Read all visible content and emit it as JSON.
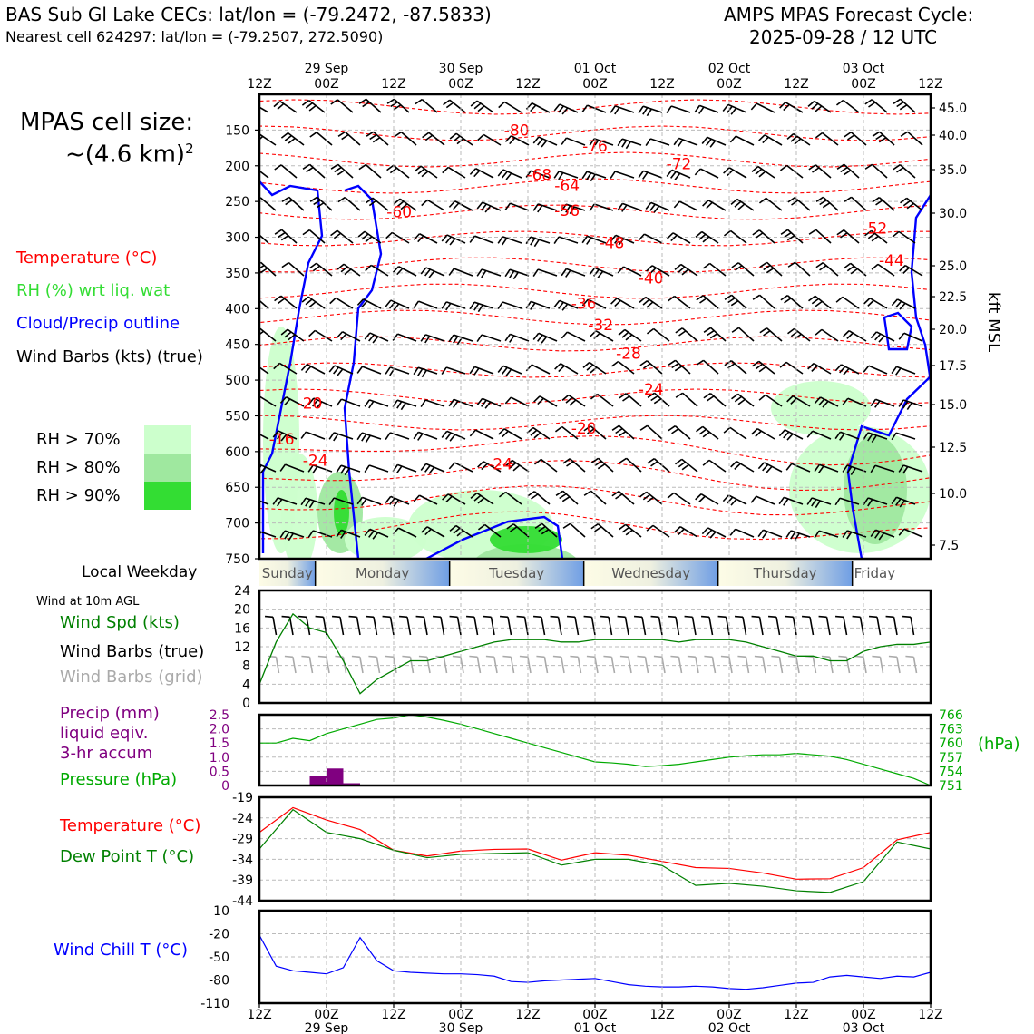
{
  "header": {
    "title_line1": "BAS Sub Gl Lake CECs: lat/lon = (-79.2472, -87.5833)",
    "title_line2": "Nearest cell 624297: lat/lon = (-79.2507, 272.5090)",
    "cycle_line1": "AMPS MPAS Forecast Cycle:",
    "cycle_line2": "2025-09-28 / 12 UTC"
  },
  "left_panel": {
    "cell_size_line1": "MPAS cell size:",
    "cell_size_line2": "~(4.6 km)",
    "cell_size_sup": "2",
    "legend_temperature": "Temperature (°C)",
    "legend_rh": "RH (%) wrt liq. wat",
    "legend_cloud": "Cloud/Precip outline",
    "legend_wind": "Wind Barbs (kts) (true)",
    "rh_levels": [
      {
        "label": "RH > 70%",
        "color": "#ccffcc"
      },
      {
        "label": "RH > 80%",
        "color": "#9fe89f"
      },
      {
        "label": "RH > 90%",
        "color": "#33dd33"
      }
    ],
    "local_weekday": "Local Weekday",
    "wind_10m": "Wind at 10m AGL",
    "wind_spd": "Wind Spd (kts)",
    "wind_barbs_true": "Wind Barbs (true)",
    "wind_barbs_grid": "Wind Barbs (grid)",
    "precip_line1": "Precip (mm)",
    "precip_line2": "liquid eqiv.",
    "precip_line3": "3-hr accum",
    "pressure": "Pressure (hPa)",
    "temperature": "Temperature (°C)",
    "dew_point": "Dew Point T (°C)",
    "wind_chill": "Wind Chill T (°C)"
  },
  "colors": {
    "temperature": "#ff0000",
    "rh_text": "#33dd33",
    "cloud": "#0000ff",
    "wind_spd": "#008000",
    "wind_grid": "#aaaaaa",
    "precip": "#800080",
    "pressure": "#00aa00",
    "dewpoint": "#008000",
    "windchill": "#0000ff"
  },
  "time_axis": {
    "top_dates": [
      "29 Sep",
      "30 Sep",
      "01 Oct",
      "02 Oct",
      "03 Oct"
    ],
    "hours": [
      "12Z",
      "00Z",
      "12Z",
      "00Z",
      "12Z",
      "00Z",
      "12Z",
      "00Z",
      "12Z",
      "00Z",
      "12Z"
    ],
    "bottom_hours": [
      "12Z",
      "00Z",
      "12Z",
      "00Z",
      "12Z",
      "00Z",
      "12Z",
      "00Z",
      "12Z",
      "00Z",
      "12Z"
    ],
    "bottom_dates": [
      "29 Sep",
      "30 Sep",
      "01 Oct",
      "02 Oct",
      "03 Oct"
    ]
  },
  "weekdays": [
    "Sunday",
    "Monday",
    "Tuesday",
    "Wednesday",
    "Thursday",
    "Friday"
  ],
  "chart_data": [
    {
      "type": "heatmap",
      "name": "time-height cross section",
      "ylabel_left": "pressure (hPa)",
      "ylabel_right": "kft MSL",
      "pressure_ticks": [
        150,
        200,
        250,
        300,
        350,
        400,
        450,
        500,
        550,
        600,
        650,
        700,
        750
      ],
      "height_ticks": [
        "45.0",
        "40.0",
        "35.0",
        "30.0",
        "25.0",
        "22.5",
        "20.0",
        "17.5",
        "15.0",
        "12.5",
        "10.0",
        "7.5"
      ],
      "temperature_labels": [
        {
          "text": "-80",
          "t": 46,
          "p": 158
        },
        {
          "text": "-76",
          "t": 60,
          "p": 180
        },
        {
          "text": "-72",
          "t": 75,
          "p": 205
        },
        {
          "text": "-68",
          "t": 50,
          "p": 220
        },
        {
          "text": "-64",
          "t": 55,
          "p": 235
        },
        {
          "text": "-60",
          "t": 25,
          "p": 272
        },
        {
          "text": "-56",
          "t": 55,
          "p": 270
        },
        {
          "text": "-52",
          "t": 110,
          "p": 295
        },
        {
          "text": "-48",
          "t": 63,
          "p": 315
        },
        {
          "text": "-44",
          "t": 113,
          "p": 340
        },
        {
          "text": "-40",
          "t": 70,
          "p": 365
        },
        {
          "text": "-36",
          "t": 58,
          "p": 400
        },
        {
          "text": "-32",
          "t": 61,
          "p": 430
        },
        {
          "text": "-28",
          "t": 66,
          "p": 470
        },
        {
          "text": "-24",
          "t": 70,
          "p": 520
        },
        {
          "text": "-20",
          "t": 9,
          "p": 540
        },
        {
          "text": "-20",
          "t": 58,
          "p": 575
        },
        {
          "text": "-16",
          "t": 4,
          "p": 590
        },
        {
          "text": "-24",
          "t": 10,
          "p": 620
        },
        {
          "text": "-24",
          "t": 43,
          "p": 625
        }
      ]
    },
    {
      "type": "line",
      "name": "10m wind",
      "ylim": [
        0,
        24
      ],
      "yticks": [
        0,
        4,
        8,
        12,
        16,
        20,
        24
      ],
      "x_hours": [
        0,
        3,
        6,
        9,
        12,
        15,
        18,
        21,
        24,
        27,
        30,
        33,
        36,
        39,
        42,
        45,
        48,
        51,
        54,
        57,
        60,
        63,
        66,
        69,
        72,
        75,
        78,
        81,
        84,
        87,
        90,
        93,
        96,
        99,
        102,
        105,
        108,
        111,
        114,
        117,
        120
      ],
      "series": [
        {
          "name": "Wind Spd (kts)",
          "values": [
            4,
            13,
            19,
            16,
            15,
            9,
            2,
            5,
            7,
            9,
            9,
            10,
            11,
            12,
            13,
            13.5,
            13.5,
            13.5,
            13,
            13,
            13.5,
            13.5,
            13.5,
            13.5,
            13.5,
            13,
            13.5,
            13.5,
            13.5,
            13,
            12,
            11,
            10,
            10,
            9,
            9,
            11,
            12,
            12.5,
            12.5,
            13
          ]
        }
      ]
    },
    {
      "type": "bar",
      "name": "precip and pressure",
      "ylim_precip": [
        0,
        2.5
      ],
      "yticks_precip": [
        "0",
        "0.5",
        "1.0",
        "1.5",
        "2.0",
        "2.5"
      ],
      "yticks_pressure": [
        "751",
        "754",
        "757",
        "760",
        "763",
        "766"
      ],
      "pressure_unit": "(hPa)",
      "precip": {
        "x_hours": [
          9,
          12,
          15
        ],
        "values": [
          0.35,
          0.6,
          0.08
        ]
      },
      "pressure": {
        "x_hours": [
          0,
          3,
          6,
          9,
          12,
          15,
          18,
          21,
          24,
          27,
          30,
          33,
          36,
          39,
          42,
          45,
          48,
          51,
          54,
          57,
          60,
          63,
          66,
          69,
          72,
          75,
          78,
          81,
          84,
          87,
          90,
          93,
          96,
          99,
          102,
          105,
          108,
          111,
          114,
          117,
          120
        ],
        "values": [
          760,
          760,
          761,
          760.5,
          762,
          763,
          764,
          765,
          765.3,
          766,
          765.5,
          764.8,
          764,
          763,
          762,
          761,
          760,
          759,
          758,
          757,
          756,
          755.8,
          755.5,
          755,
          755.2,
          755.5,
          756,
          756.5,
          757,
          757.3,
          757.5,
          757.5,
          757.8,
          757.5,
          757.2,
          756.5,
          755.5,
          754.5,
          753.5,
          752.5,
          751
        ]
      }
    },
    {
      "type": "line",
      "name": "temperature and dew point",
      "ylim": [
        -44,
        -19
      ],
      "yticks": [
        -19,
        -24,
        -29,
        -34,
        -39,
        -44
      ],
      "x_hours": [
        0,
        6,
        12,
        18,
        24,
        30,
        36,
        42,
        48,
        54,
        60,
        66,
        72,
        78,
        84,
        90,
        96,
        102,
        108,
        114,
        120
      ],
      "series": [
        {
          "name": "Temperature (°C)",
          "values": [
            -27.5,
            -21.5,
            -24.5,
            -26.8,
            -31.8,
            -33.2,
            -32,
            -31.6,
            -31.5,
            -34.2,
            -32.4,
            -33,
            -34.5,
            -36,
            -36.2,
            -37.3,
            -38.8,
            -38.7,
            -36,
            -29.3,
            -27.5
          ]
        },
        {
          "name": "Dew Point T (°C)",
          "values": [
            -31.5,
            -22,
            -27.5,
            -29,
            -31.8,
            -33.6,
            -32.8,
            -32.6,
            -32.4,
            -35.4,
            -34,
            -34,
            -35.5,
            -40.3,
            -39.8,
            -40.5,
            -41.6,
            -42,
            -39.4,
            -29.8,
            -31.5
          ]
        }
      ]
    },
    {
      "type": "line",
      "name": "wind chill",
      "ylim": [
        -110,
        10
      ],
      "yticks": [
        10,
        -20,
        -50,
        -80,
        -110
      ],
      "x_hours": [
        0,
        3,
        6,
        9,
        12,
        15,
        18,
        21,
        24,
        27,
        30,
        33,
        36,
        39,
        42,
        45,
        48,
        51,
        54,
        57,
        60,
        63,
        66,
        69,
        72,
        75,
        78,
        81,
        84,
        87,
        90,
        93,
        96,
        99,
        102,
        105,
        108,
        111,
        114,
        117,
        120
      ],
      "series": [
        {
          "name": "Wind Chill T (°C)",
          "values": [
            -22,
            -62,
            -68,
            -70,
            -72,
            -64,
            -25,
            -55,
            -68,
            -70,
            -71,
            -72,
            -72,
            -73,
            -75,
            -82,
            -83,
            -81,
            -80,
            -79,
            -78,
            -82,
            -86,
            -88,
            -89,
            -89,
            -88,
            -89,
            -91,
            -92,
            -90,
            -87,
            -84,
            -83,
            -76,
            -74,
            -76,
            -78,
            -75,
            -76,
            -70
          ]
        }
      ]
    }
  ]
}
